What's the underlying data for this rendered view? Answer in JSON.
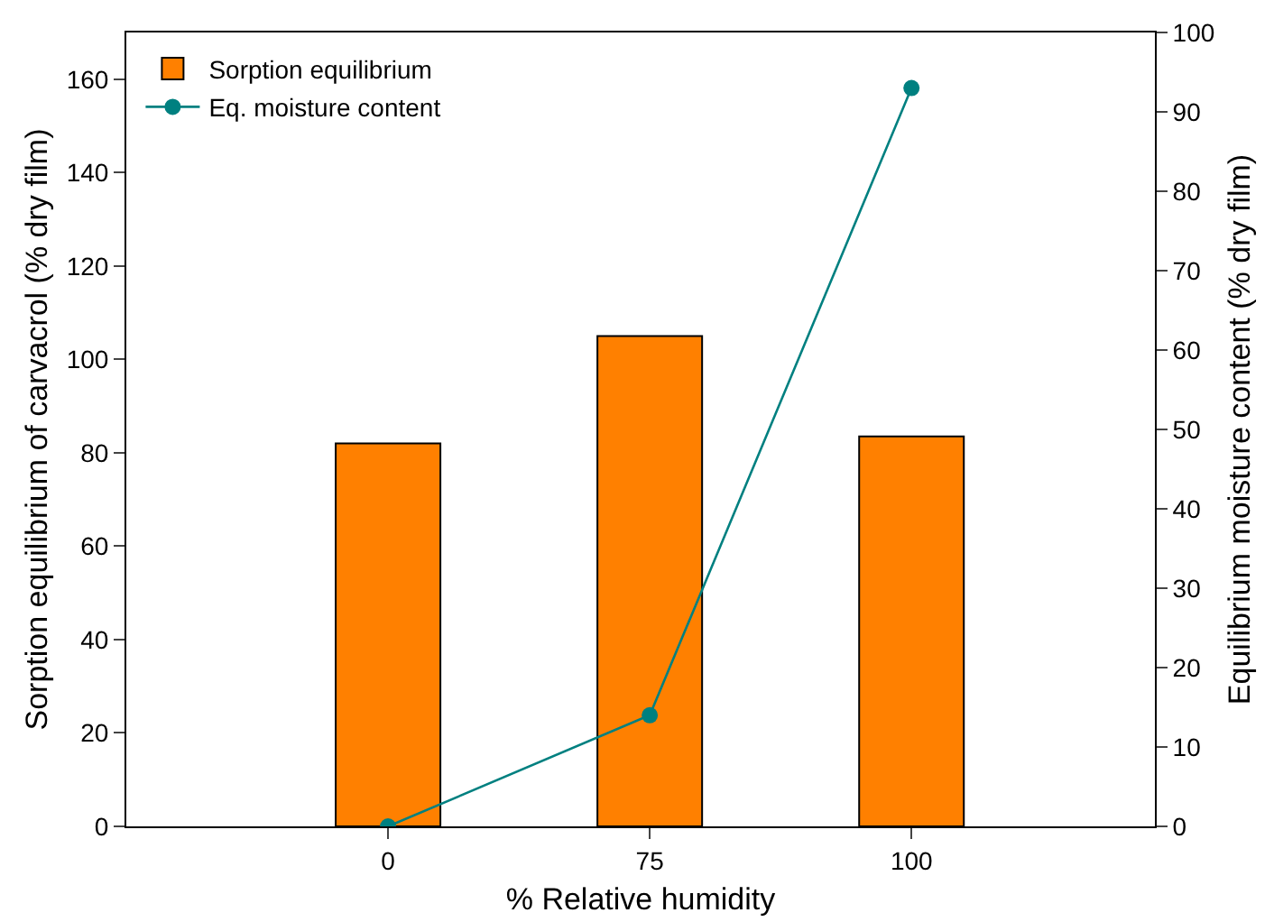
{
  "chart_data": {
    "type": "bar",
    "xlabel": "% Relative humidity",
    "ylabel": "Sorption equilibrium of carvacrol (% dry film)",
    "y2label": "Equilibrium moisture content (% dry film)",
    "categories": [
      "0",
      "75",
      "100"
    ],
    "series": [
      {
        "name": "Sorption equilibrium",
        "color": "#ff8000",
        "values": [
          82,
          105,
          83.5
        ]
      },
      {
        "name": "Eq. moisture content",
        "type": "line",
        "axis": "y2",
        "color": "#008080",
        "marker": "circle",
        "values": [
          0,
          14,
          93
        ]
      }
    ],
    "ylim": [
      0,
      170
    ],
    "yticks": [
      0,
      20,
      40,
      60,
      80,
      100,
      120,
      140,
      160
    ],
    "y2lim": [
      0,
      100
    ],
    "y2ticks": [
      0,
      10,
      20,
      30,
      40,
      50,
      60,
      70,
      80,
      90,
      100
    ],
    "legend": "top left",
    "grid": false
  }
}
